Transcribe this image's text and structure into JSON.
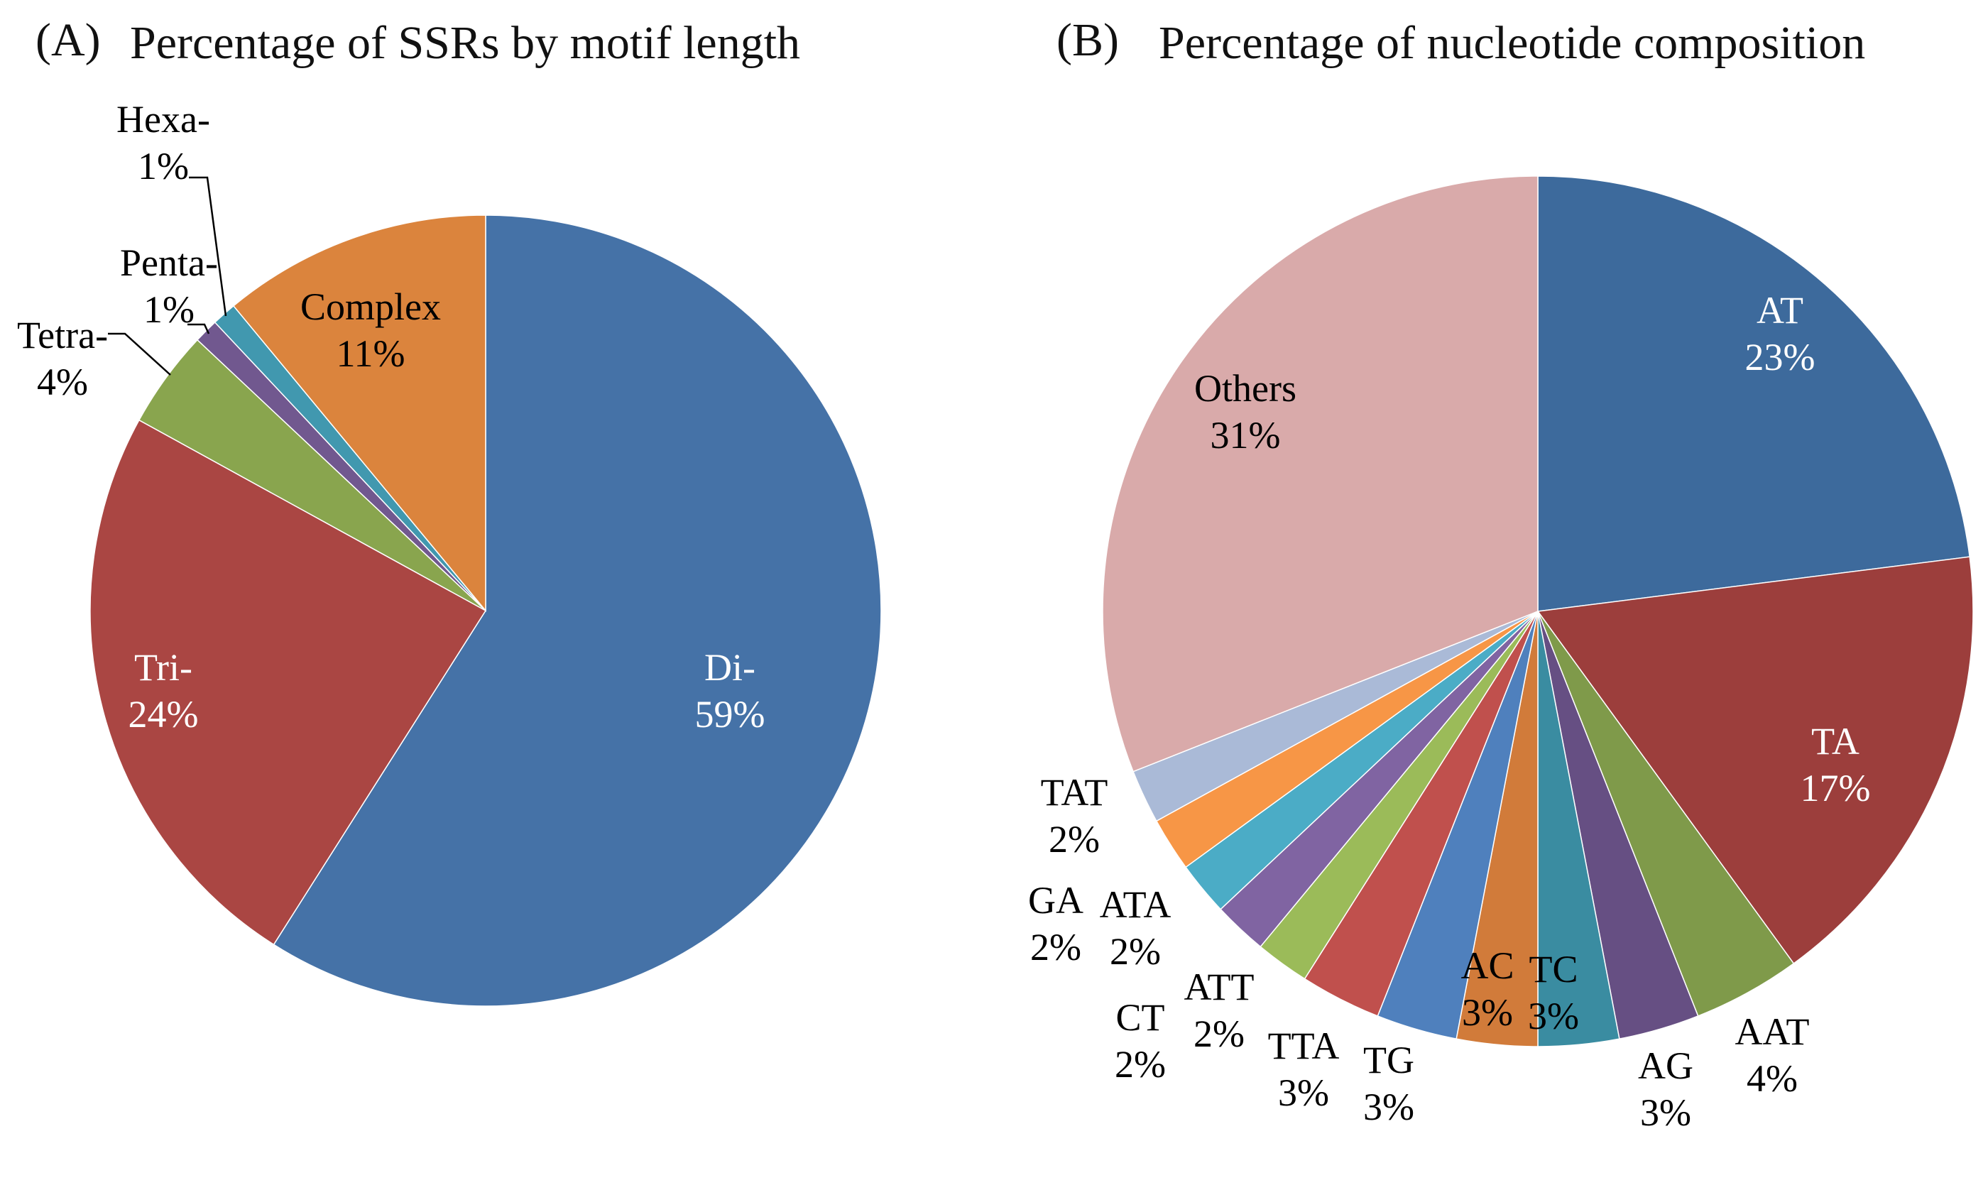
{
  "chart_data": [
    {
      "type": "pie",
      "panel": "(A)",
      "title": "Percentage of SSRs by motif length",
      "slices": [
        {
          "label": "Di-",
          "value_label": "59%",
          "value": 59,
          "color": "#4572a7",
          "label_color": "#ffffff"
        },
        {
          "label": "Tri-",
          "value_label": "24%",
          "value": 24,
          "color": "#aa4643",
          "label_color": "#ffffff"
        },
        {
          "label": "Tetra-",
          "value_label": "4%",
          "value": 4,
          "color": "#89a54e",
          "label_color": "#000000"
        },
        {
          "label": "Penta-",
          "value_label": "1%",
          "value": 1,
          "color": "#71588f",
          "label_color": "#000000"
        },
        {
          "label": "Hexa-",
          "value_label": "1%",
          "value": 1,
          "color": "#4198af",
          "label_color": "#000000"
        },
        {
          "label": "Complex",
          "value_label": "11%",
          "value": 11,
          "color": "#db843d",
          "label_color": "#000000"
        }
      ]
    },
    {
      "type": "pie",
      "panel": "(B)",
      "title": "Percentage of nucleotide composition",
      "slices": [
        {
          "label": "AT",
          "value_label": "23%",
          "value": 23,
          "color": "#3d6a9c",
          "label_color": "#ffffff"
        },
        {
          "label": "TA",
          "value_label": "17%",
          "value": 17,
          "color": "#9c3e3c",
          "label_color": "#ffffff"
        },
        {
          "label": "AAT",
          "value_label": "4%",
          "value": 4,
          "color": "#7f9a4a",
          "label_color": "#000000"
        },
        {
          "label": "AG",
          "value_label": "3%",
          "value": 3,
          "color": "#664f83",
          "label_color": "#000000"
        },
        {
          "label": "TC",
          "value_label": "3%",
          "value": 3,
          "color": "#3a8ca1",
          "label_color": "#000000"
        },
        {
          "label": "AC",
          "value_label": "3%",
          "value": 3,
          "color": "#d17b3a",
          "label_color": "#000000"
        },
        {
          "label": "TG",
          "value_label": "3%",
          "value": 3,
          "color": "#4f80bd",
          "label_color": "#000000"
        },
        {
          "label": "TTA",
          "value_label": "3%",
          "value": 3,
          "color": "#c0504d",
          "label_color": "#000000"
        },
        {
          "label": "ATT",
          "value_label": "2%",
          "value": 2,
          "color": "#9bbb59",
          "label_color": "#000000"
        },
        {
          "label": "CT",
          "value_label": "2%",
          "value": 2,
          "color": "#8064a2",
          "label_color": "#000000"
        },
        {
          "label": "ATA",
          "value_label": "2%",
          "value": 2,
          "color": "#4bacc6",
          "label_color": "#000000"
        },
        {
          "label": "GA",
          "value_label": "2%",
          "value": 2,
          "color": "#f79646",
          "label_color": "#000000"
        },
        {
          "label": "TAT",
          "value_label": "2%",
          "value": 2,
          "color": "#aabad7",
          "label_color": "#000000"
        },
        {
          "label": "Others",
          "value_label": "31%",
          "value": 31,
          "color": "#d9aaaa",
          "label_color": "#000000"
        }
      ]
    }
  ]
}
